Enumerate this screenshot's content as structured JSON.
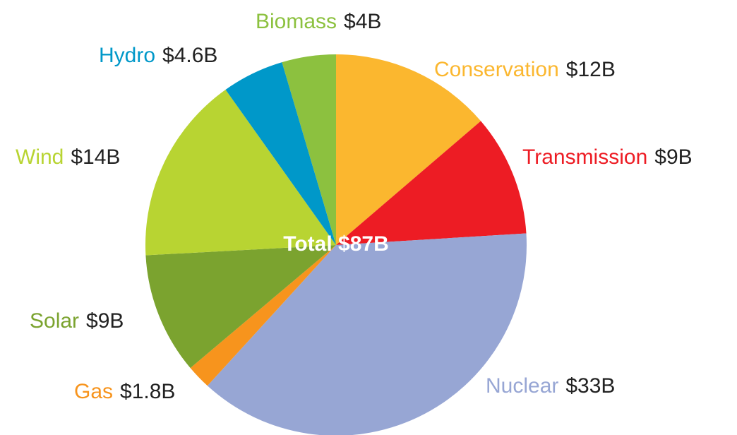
{
  "chart_data": {
    "type": "pie",
    "categories": [
      "Conservation",
      "Transmission",
      "Nuclear",
      "Gas",
      "Solar",
      "Wind",
      "Hydro",
      "Biomass"
    ],
    "values": [
      12,
      9,
      33,
      1.8,
      9,
      14,
      4.6,
      4
    ],
    "value_labels": [
      "$12B",
      "$9B",
      "$33B",
      "$1.8B",
      "$9B",
      "$14B",
      "$4.6B",
      "$4B"
    ],
    "colors": [
      "#fbb72f",
      "#ed1c24",
      "#97a6d4",
      "#f7941d",
      "#7ba32f",
      "#b8d432",
      "#0098c9",
      "#8cc13f"
    ],
    "total_label": "Total $87B"
  }
}
